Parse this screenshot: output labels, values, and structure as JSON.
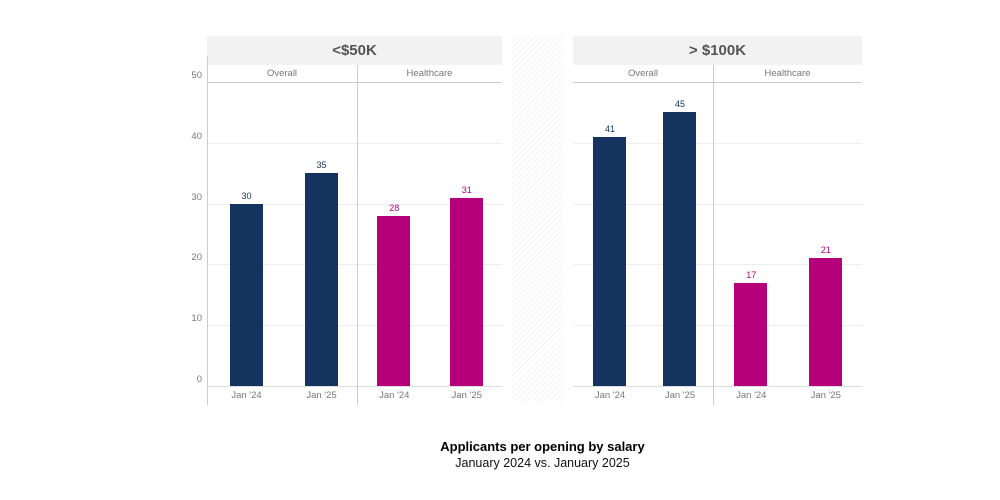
{
  "chart_data": {
    "type": "bar",
    "title": "Applicants per opening by salary",
    "subtitle": "January 2024 vs. January 2025",
    "ylim": [
      0,
      50
    ],
    "yticks": [
      0,
      10,
      20,
      30,
      40,
      50
    ],
    "colors": {
      "Overall": "#14345f",
      "Healthcare": "#b5007a"
    },
    "panels": [
      {
        "label": "<$50K",
        "groups": [
          {
            "label": "Overall",
            "categories": [
              "Jan '24",
              "Jan '25"
            ],
            "values": [
              30,
              35
            ]
          },
          {
            "label": "Healthcare",
            "categories": [
              "Jan '24",
              "Jan '25"
            ],
            "values": [
              28,
              31
            ]
          }
        ]
      },
      {
        "label": "> $100K",
        "groups": [
          {
            "label": "Overall",
            "categories": [
              "Jan '24",
              "Jan '25"
            ],
            "values": [
              41,
              45
            ]
          },
          {
            "label": "Healthcare",
            "categories": [
              "Jan '24",
              "Jan '25"
            ],
            "values": [
              17,
              21
            ]
          }
        ]
      }
    ]
  }
}
